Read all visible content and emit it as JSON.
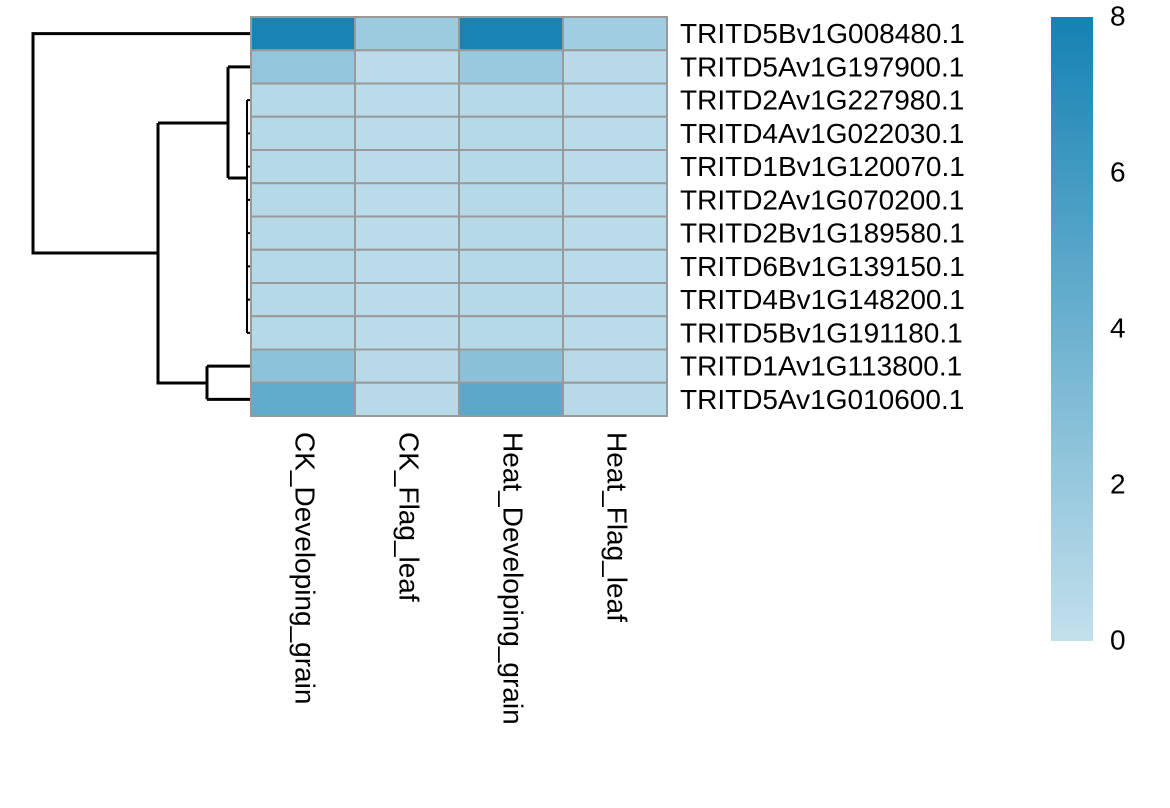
{
  "chart_data": {
    "type": "heatmap",
    "rows": [
      "TRITD5Bv1G008480.1",
      "TRITD5Av1G197900.1",
      "TRITD2Av1G227980.1",
      "TRITD4Av1G022030.1",
      "TRITD1Bv1G120070.1",
      "TRITD2Av1G070200.1",
      "TRITD2Bv1G189580.1",
      "TRITD6Bv1G139150.1",
      "TRITD4Bv1G148200.1",
      "TRITD5Bv1G191180.1",
      "TRITD1Av1G113800.1",
      "TRITD5Av1G010600.1"
    ],
    "columns": [
      "CK_Developing_grain",
      "CK_Flag_leaf",
      "Heat_Developing_grain",
      "Heat_Flag_leaf"
    ],
    "values": [
      [
        7.8,
        1.8,
        7.8,
        1.6
      ],
      [
        2.2,
        0.4,
        2.0,
        0.5
      ],
      [
        0.6,
        0.4,
        0.6,
        0.4
      ],
      [
        0.6,
        0.4,
        0.6,
        0.4
      ],
      [
        0.6,
        0.4,
        0.6,
        0.4
      ],
      [
        0.6,
        0.4,
        0.6,
        0.4
      ],
      [
        0.6,
        0.4,
        0.6,
        0.4
      ],
      [
        0.6,
        0.4,
        0.6,
        0.4
      ],
      [
        0.6,
        0.4,
        0.6,
        0.4
      ],
      [
        0.6,
        0.4,
        0.6,
        0.4
      ],
      [
        2.5,
        0.5,
        2.6,
        0.5
      ],
      [
        4.5,
        0.5,
        4.8,
        0.5
      ]
    ],
    "colors": [
      "#c3e0ec",
      "#1582b3"
    ],
    "clim": [
      0,
      8
    ],
    "cticks": [
      0,
      2,
      4,
      6,
      8
    ]
  }
}
